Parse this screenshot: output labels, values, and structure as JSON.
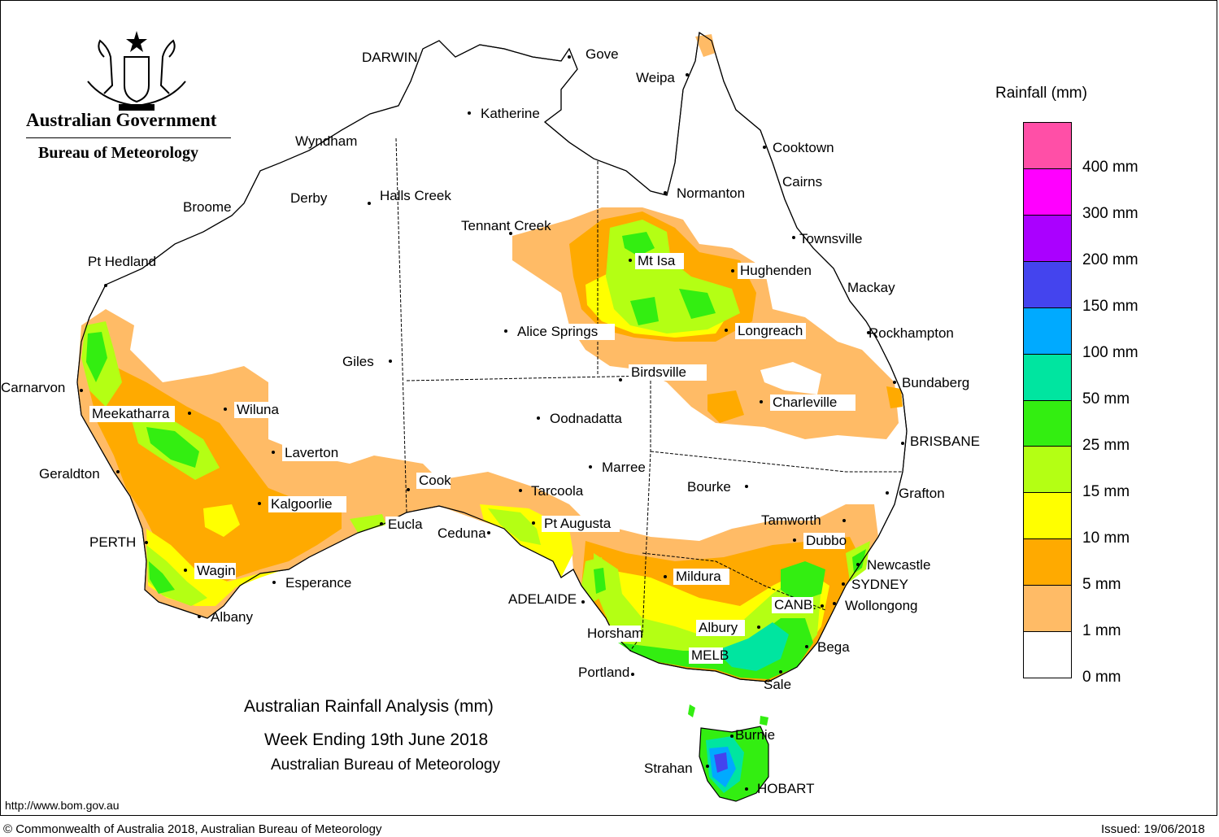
{
  "logo": {
    "title": "Australian Government",
    "subtitle": "Bureau of Meteorology",
    "icon": "coat-of-arms-icon"
  },
  "map": {
    "title_line1": "Australian Rainfall Analysis (mm)",
    "title_line2": "Week Ending 19th June 2018",
    "title_line3": "Australian Bureau of Meteorology"
  },
  "legend": {
    "title": "Rainfall (mm)",
    "levels": [
      {
        "label": "",
        "color": "#ff4fa7"
      },
      {
        "label": "400 mm",
        "color": "#ff00ff"
      },
      {
        "label": "300 mm",
        "color": "#aa00ff"
      },
      {
        "label": "200 mm",
        "color": "#4444ee"
      },
      {
        "label": "150 mm",
        "color": "#00aaff"
      },
      {
        "label": "100 mm",
        "color": "#00e5a0"
      },
      {
        "label": "50 mm",
        "color": "#33ee11"
      },
      {
        "label": "25 mm",
        "color": "#b4ff14"
      },
      {
        "label": "15 mm",
        "color": "#ffff00"
      },
      {
        "label": "10 mm",
        "color": "#ffaa00"
      },
      {
        "label": "5 mm",
        "color": "#ffbb66"
      },
      {
        "label": "1 mm",
        "color": "#ffffff"
      },
      {
        "label": "0 mm",
        "color": ""
      }
    ]
  },
  "places": [
    {
      "name": "DARWIN",
      "cap": true
    },
    {
      "name": "Gove"
    },
    {
      "name": "Weipa"
    },
    {
      "name": "Katherine"
    },
    {
      "name": "Wyndham"
    },
    {
      "name": "Cooktown"
    },
    {
      "name": "Cairns"
    },
    {
      "name": "Normanton"
    },
    {
      "name": "Derby"
    },
    {
      "name": "Halls Creek"
    },
    {
      "name": "Broome"
    },
    {
      "name": "Tennant Creek"
    },
    {
      "name": "Townsville"
    },
    {
      "name": "Pt Hedland"
    },
    {
      "name": "Mt Isa"
    },
    {
      "name": "Hughenden"
    },
    {
      "name": "Mackay"
    },
    {
      "name": "Alice Springs"
    },
    {
      "name": "Longreach"
    },
    {
      "name": "Rockhampton"
    },
    {
      "name": "Giles"
    },
    {
      "name": "Birdsville"
    },
    {
      "name": "Bundaberg"
    },
    {
      "name": "Carnarvon"
    },
    {
      "name": "Charleville"
    },
    {
      "name": "Wiluna"
    },
    {
      "name": "Meekatharra"
    },
    {
      "name": "Oodnadatta"
    },
    {
      "name": "BRISBANE",
      "cap": true
    },
    {
      "name": "Laverton"
    },
    {
      "name": "Marree"
    },
    {
      "name": "Geraldton"
    },
    {
      "name": "Cook"
    },
    {
      "name": "Bourke"
    },
    {
      "name": "Tarcoola"
    },
    {
      "name": "Grafton"
    },
    {
      "name": "Kalgoorlie"
    },
    {
      "name": "Eucla"
    },
    {
      "name": "Pt Augusta"
    },
    {
      "name": "Tamworth"
    },
    {
      "name": "Ceduna"
    },
    {
      "name": "PERTH",
      "cap": true
    },
    {
      "name": "Dubbo"
    },
    {
      "name": "Newcastle"
    },
    {
      "name": "Wagin"
    },
    {
      "name": "Mildura"
    },
    {
      "name": "SYDNEY",
      "cap": true
    },
    {
      "name": "Esperance"
    },
    {
      "name": "ADELAIDE",
      "cap": true
    },
    {
      "name": "CANB.",
      "cap": true
    },
    {
      "name": "Wollongong"
    },
    {
      "name": "Albany"
    },
    {
      "name": "Horsham"
    },
    {
      "name": "Albury"
    },
    {
      "name": "MELB",
      "cap": true
    },
    {
      "name": "Bega"
    },
    {
      "name": "Portland"
    },
    {
      "name": "Sale"
    },
    {
      "name": "Burnie"
    },
    {
      "name": "Strahan"
    },
    {
      "name": "HOBART",
      "cap": true
    }
  ],
  "footer": {
    "url": "http://www.bom.gov.au",
    "copyright": "© Commonwealth of Australia 2018, Australian Bureau of Meteorology",
    "issued": "Issued: 19/06/2018"
  }
}
